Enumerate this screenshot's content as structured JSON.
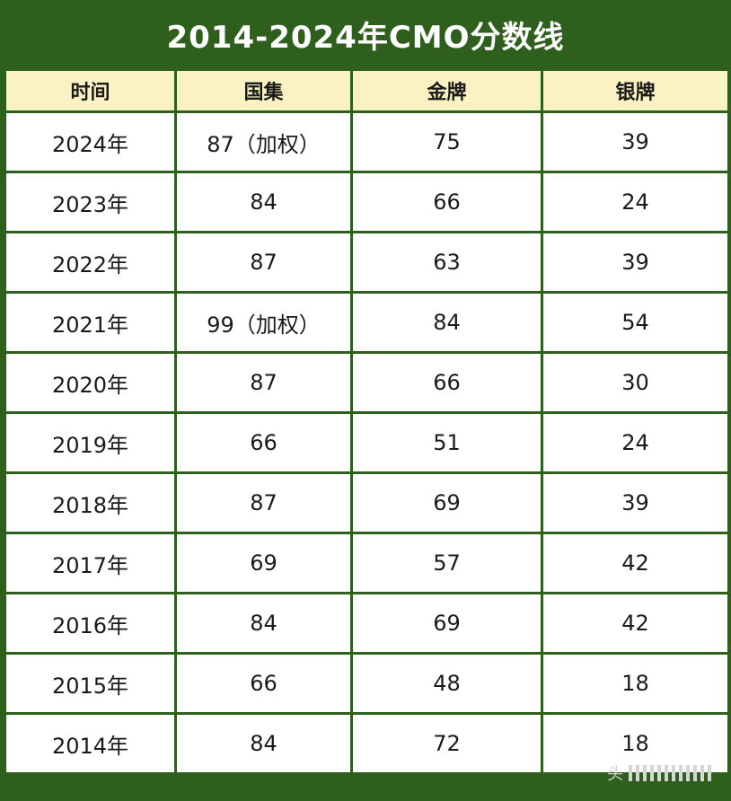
{
  "title": "2014-2024年CMO分数线",
  "table": {
    "headers": [
      "时间",
      "国集",
      "金牌",
      "银牌"
    ],
    "rows": [
      {
        "year": "2024年",
        "guoji": "87（加权）",
        "gold": "75",
        "silver": "39"
      },
      {
        "year": "2023年",
        "guoji": "84",
        "gold": "66",
        "silver": "24"
      },
      {
        "year": "2022年",
        "guoji": "87",
        "gold": "63",
        "silver": "39"
      },
      {
        "year": "2021年",
        "guoji": "99（加权）",
        "gold": "84",
        "silver": "54"
      },
      {
        "year": "2020年",
        "guoji": "87",
        "gold": "66",
        "silver": "30"
      },
      {
        "year": "2019年",
        "guoji": "66",
        "gold": "51",
        "silver": "24"
      },
      {
        "year": "2018年",
        "guoji": "87",
        "gold": "69",
        "silver": "39"
      },
      {
        "year": "2017年",
        "guoji": "69",
        "gold": "57",
        "silver": "42"
      },
      {
        "year": "2016年",
        "guoji": "84",
        "gold": "69",
        "silver": "42"
      },
      {
        "year": "2015年",
        "guoji": "66",
        "gold": "48",
        "silver": "18"
      },
      {
        "year": "2014年",
        "guoji": "84",
        "gold": "72",
        "silver": "18"
      }
    ]
  },
  "watermark": {
    "text": "头",
    "icon": "barcode-watermark-icon"
  },
  "colors": {
    "frame": "#2f5f1c",
    "header_bg": "#fbf2c4"
  }
}
